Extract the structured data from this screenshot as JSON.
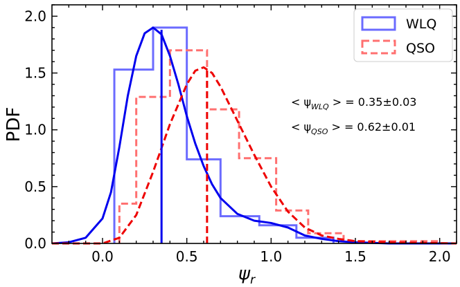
{
  "chart_data": {
    "type": "line",
    "title": "",
    "xlabel": "ψ",
    "xlabel_sub": "r",
    "ylabel": "PDF",
    "xlim": [
      -0.3,
      2.1
    ],
    "ylim": [
      0.0,
      2.1
    ],
    "xticks": [
      "0.0",
      "0.5",
      "1.0",
      "1.5",
      "2.0"
    ],
    "yticks": [
      "0.0",
      "0.5",
      "1.0",
      "1.5",
      "2.0"
    ],
    "legend": {
      "position": "top-right",
      "entries": [
        {
          "label": "WLQ",
          "color": "#0000ff",
          "style": "solid"
        },
        {
          "label": "QSO",
          "color": "#ff0000",
          "style": "dashed"
        }
      ]
    },
    "annotations": [
      {
        "prefix": "< ψ",
        "sub": "WLQ",
        "suffix": " >  = 0.35±0.03"
      },
      {
        "prefix": "< ψ",
        "sub": "QSO",
        "suffix": " >  = 0.62±0.01"
      }
    ],
    "histograms": [
      {
        "name": "WLQ",
        "color": "#6b6bff",
        "style": "solid",
        "edges": [
          0.07,
          0.3,
          0.5,
          0.7,
          0.93,
          1.15,
          1.37
        ],
        "values": [
          1.53,
          1.9,
          0.74,
          0.24,
          0.16,
          0.05
        ]
      },
      {
        "name": "QSO",
        "color": "#ff7070",
        "style": "dashed",
        "edges": [
          0.1,
          0.2,
          0.4,
          0.62,
          0.81,
          1.03,
          1.22,
          1.43,
          1.62,
          1.81,
          2.0
        ],
        "values": [
          0.35,
          1.29,
          1.7,
          1.18,
          0.75,
          0.29,
          0.09,
          0.02,
          0.02,
          0.02
        ]
      }
    ],
    "kde": [
      {
        "name": "WLQ",
        "color": "#0000ee",
        "style": "solid",
        "x": [
          -0.3,
          -0.2,
          -0.1,
          0.0,
          0.05,
          0.1,
          0.15,
          0.2,
          0.25,
          0.3,
          0.35,
          0.4,
          0.45,
          0.5,
          0.55,
          0.6,
          0.65,
          0.7,
          0.8,
          0.9,
          1.0,
          1.1,
          1.2,
          1.3,
          1.4,
          1.5,
          1.7,
          2.1
        ],
        "y": [
          0.0,
          0.01,
          0.05,
          0.22,
          0.45,
          0.85,
          1.3,
          1.65,
          1.85,
          1.9,
          1.84,
          1.65,
          1.4,
          1.12,
          0.88,
          0.68,
          0.52,
          0.4,
          0.26,
          0.2,
          0.18,
          0.14,
          0.07,
          0.04,
          0.02,
          0.01,
          0.0,
          0.0
        ]
      },
      {
        "name": "QSO",
        "color": "#ee0000",
        "style": "dashed",
        "x": [
          -0.3,
          0.0,
          0.1,
          0.2,
          0.3,
          0.4,
          0.5,
          0.55,
          0.6,
          0.65,
          0.7,
          0.8,
          0.9,
          1.0,
          1.1,
          1.2,
          1.3,
          1.4,
          1.5,
          1.7,
          2.1
        ],
        "y": [
          0.0,
          0.0,
          0.05,
          0.25,
          0.63,
          1.05,
          1.4,
          1.52,
          1.55,
          1.5,
          1.38,
          1.08,
          0.78,
          0.5,
          0.28,
          0.14,
          0.07,
          0.04,
          0.02,
          0.01,
          0.0
        ]
      }
    ],
    "vlines": [
      {
        "name": "WLQ-mean",
        "x": 0.35,
        "y": 1.88,
        "color": "#0000ee",
        "style": "solid"
      },
      {
        "name": "QSO-mean",
        "x": 0.62,
        "y": 1.53,
        "color": "#ee0000",
        "style": "dashed"
      }
    ]
  }
}
